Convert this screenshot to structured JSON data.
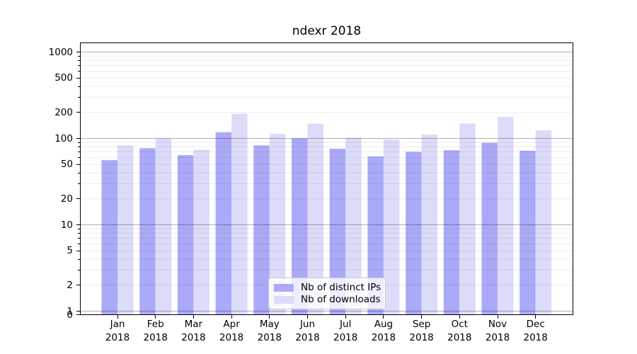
{
  "chart_data": {
    "type": "bar",
    "title": "ndexr 2018",
    "categories": [
      "Jan 2018",
      "Feb 2018",
      "Mar 2018",
      "Apr 2018",
      "May 2018",
      "Jun 2018",
      "Jul 2018",
      "Aug 2018",
      "Sep 2018",
      "Oct 2018",
      "Nov 2018",
      "Dec 2018"
    ],
    "series": [
      {
        "name": "Nb of distinct IPs",
        "color": "#aaaaf8",
        "values": [
          56,
          77,
          64,
          118,
          83,
          100,
          76,
          62,
          70,
          73,
          89,
          72
        ]
      },
      {
        "name": "Nb of downloads",
        "color": "#dcdcfa",
        "values": [
          83,
          100,
          74,
          193,
          113,
          148,
          102,
          97,
          111,
          149,
          178,
          124
        ]
      }
    ],
    "xlabel": "",
    "ylabel": "",
    "yscale": "symlog",
    "yticks": [
      0,
      1,
      2,
      5,
      10,
      20,
      50,
      100,
      200,
      500,
      1000
    ],
    "ylim": [
      0,
      1300
    ],
    "grid": "on",
    "legend_position": "lower center",
    "axis_color": "#000000",
    "major_grid_color": "#b0b0b0",
    "minor_grid_color": "#ebebeb",
    "background_color": "#ffffff"
  }
}
